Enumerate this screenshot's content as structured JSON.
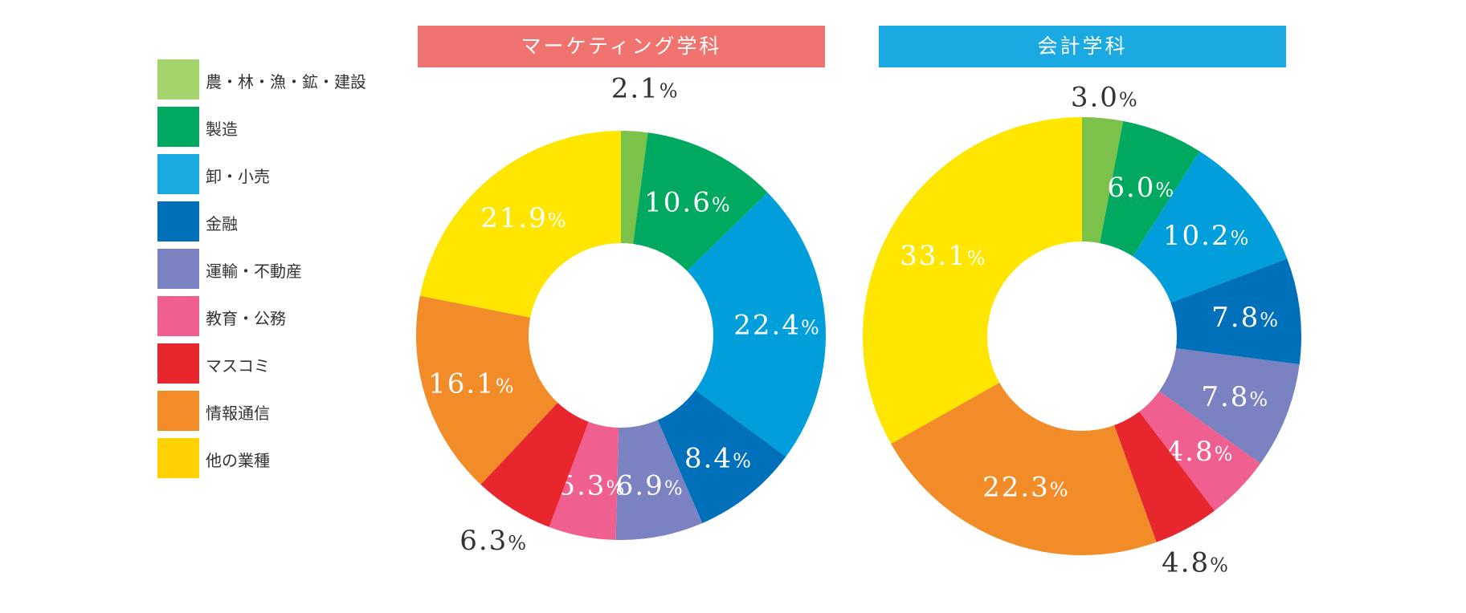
{
  "legend": [
    {
      "label": "農・林・漁・鉱・建設",
      "color": "#a5d46d"
    },
    {
      "label": "製造",
      "color": "#00a95f"
    },
    {
      "label": "卸・小売",
      "color": "#1aa9e0"
    },
    {
      "label": "金融",
      "color": "#0070bb"
    },
    {
      "label": "運輸・不動産",
      "color": "#7a82c2"
    },
    {
      "label": "教育・公務",
      "color": "#ef5f8f"
    },
    {
      "label": "マスコミ",
      "color": "#e8262d"
    },
    {
      "label": "情報通信",
      "color": "#f28c28"
    },
    {
      "label": "他の業種",
      "color": "#ffd200"
    }
  ],
  "chart_data": [
    {
      "type": "pie",
      "title": "マーケティング学科",
      "title_color": "#f0736f",
      "pct_suffix": "%",
      "categories": [
        "農・林・漁・鉱・建設",
        "製造",
        "卸・小売",
        "金融",
        "運輸・不動産",
        "教育・公務",
        "マスコミ",
        "情報通信",
        "他の業種"
      ],
      "values": [
        2.1,
        10.6,
        22.4,
        8.4,
        6.9,
        5.3,
        6.3,
        16.1,
        21.9
      ],
      "value_labels": [
        "2.1",
        "10.6",
        "22.4",
        "8.4",
        "6.9",
        "5.3",
        "6.3",
        "16.1",
        "21.9"
      ],
      "colors": [
        "#7bc24a",
        "#00a95f",
        "#009edb",
        "#0070bb",
        "#7a82c2",
        "#ef5f8f",
        "#e8262d",
        "#f28c28",
        "#ffe600"
      ]
    },
    {
      "type": "pie",
      "title": "会計学科",
      "title_color": "#1aa9e0",
      "pct_suffix": "%",
      "categories": [
        "農・林・漁・鉱・建設",
        "製造",
        "卸・小売",
        "金融",
        "運輸・不動産",
        "教育・公務",
        "マスコミ",
        "情報通信",
        "他の業種"
      ],
      "values": [
        3.0,
        6.0,
        10.2,
        7.8,
        7.8,
        4.8,
        4.8,
        22.3,
        33.1
      ],
      "value_labels": [
        "3.0",
        "6.0",
        "10.2",
        "7.8",
        "7.8",
        "4.8",
        "4.8",
        "22.3",
        "33.1"
      ],
      "colors": [
        "#7bc24a",
        "#00a95f",
        "#009edb",
        "#0070bb",
        "#7a82c2",
        "#ef5f8f",
        "#e8262d",
        "#f28c28",
        "#ffe600"
      ]
    }
  ]
}
